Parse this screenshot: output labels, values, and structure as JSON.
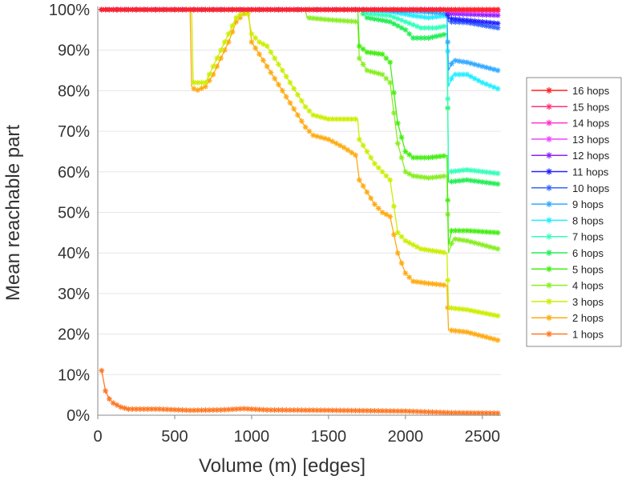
{
  "chart_data": {
    "type": "line",
    "title": "",
    "xlabel": "Volume (m) [edges]",
    "ylabel": "Mean reachable part",
    "xlim": [
      0,
      2600
    ],
    "ylim": [
      0,
      100
    ],
    "xticks": [
      0,
      500,
      1000,
      1500,
      2000,
      2500
    ],
    "xtick_labels": [
      "0",
      "500",
      "1000",
      "1500",
      "2000",
      "2500"
    ],
    "yticks": [
      0,
      10,
      20,
      30,
      40,
      50,
      60,
      70,
      80,
      90,
      100
    ],
    "ytick_labels": [
      "0%",
      "10%",
      "20%",
      "30%",
      "40%",
      "50%",
      "60%",
      "70%",
      "80%",
      "90%",
      "100%"
    ],
    "grid": "horizontal",
    "legend_position": "right",
    "series": [
      {
        "name": "16 hops",
        "color": "#ff2222",
        "points": [
          [
            25,
            100
          ],
          [
            2600,
            100
          ]
        ]
      },
      {
        "name": "15 hops",
        "color": "#ff3377",
        "points": [
          [
            25,
            100
          ],
          [
            2600,
            100
          ]
        ]
      },
      {
        "name": "14 hops",
        "color": "#ff33cc",
        "points": [
          [
            25,
            100
          ],
          [
            2600,
            100
          ]
        ]
      },
      {
        "name": "13 hops",
        "color": "#ee44ff",
        "points": [
          [
            25,
            100
          ],
          [
            2270,
            100
          ],
          [
            2280,
            99.6
          ],
          [
            2600,
            99.5
          ]
        ]
      },
      {
        "name": "12 hops",
        "color": "#8822ff",
        "points": [
          [
            25,
            100
          ],
          [
            2270,
            100
          ],
          [
            2280,
            99
          ],
          [
            2600,
            98.6
          ]
        ]
      },
      {
        "name": "11 hops",
        "color": "#2222ff",
        "points": [
          [
            25,
            100
          ],
          [
            2270,
            100
          ],
          [
            2280,
            97.8
          ],
          [
            2600,
            96.6
          ]
        ]
      },
      {
        "name": "10 hops",
        "color": "#3366ff",
        "points": [
          [
            25,
            100
          ],
          [
            2270,
            100
          ],
          [
            2280,
            97
          ],
          [
            2400,
            96.8
          ],
          [
            2600,
            95.5
          ]
        ]
      },
      {
        "name": "9 hops",
        "color": "#33aaff",
        "points": [
          [
            25,
            100
          ],
          [
            1800,
            100
          ],
          [
            2100,
            99.5
          ],
          [
            2270,
            99
          ],
          [
            2280,
            85
          ],
          [
            2310,
            87.5
          ],
          [
            2400,
            87
          ],
          [
            2600,
            85
          ]
        ]
      },
      {
        "name": "8 hops",
        "color": "#22eeff",
        "points": [
          [
            25,
            100
          ],
          [
            1700,
            100
          ],
          [
            1900,
            99.5
          ],
          [
            2050,
            98.5
          ],
          [
            2150,
            98
          ],
          [
            2270,
            98.5
          ],
          [
            2280,
            81
          ],
          [
            2310,
            84
          ],
          [
            2400,
            84
          ],
          [
            2500,
            82
          ],
          [
            2600,
            80.5
          ]
        ]
      },
      {
        "name": "7 hops",
        "color": "#33ffbb",
        "points": [
          [
            25,
            100
          ],
          [
            1700,
            100
          ],
          [
            1750,
            99
          ],
          [
            1900,
            98.5
          ],
          [
            2000,
            97
          ],
          [
            2100,
            95.5
          ],
          [
            2200,
            95.5
          ],
          [
            2270,
            96
          ],
          [
            2280,
            60
          ],
          [
            2400,
            60.5
          ],
          [
            2600,
            59.6
          ]
        ]
      },
      {
        "name": "6 hops",
        "color": "#22ee55",
        "points": [
          [
            25,
            100
          ],
          [
            1700,
            100
          ],
          [
            1750,
            98
          ],
          [
            1900,
            97
          ],
          [
            2000,
            95
          ],
          [
            2050,
            93
          ],
          [
            2150,
            93
          ],
          [
            2270,
            94
          ],
          [
            2280,
            57.5
          ],
          [
            2400,
            58
          ],
          [
            2600,
            57
          ]
        ]
      },
      {
        "name": "5 hops",
        "color": "#44ee11",
        "points": [
          [
            25,
            100
          ],
          [
            1690,
            100
          ],
          [
            1700,
            91
          ],
          [
            1750,
            89.5
          ],
          [
            1850,
            89
          ],
          [
            1900,
            87
          ],
          [
            1950,
            72
          ],
          [
            2000,
            65
          ],
          [
            2050,
            63.5
          ],
          [
            2150,
            63.5
          ],
          [
            2270,
            64
          ],
          [
            2280,
            42
          ],
          [
            2300,
            45.5
          ],
          [
            2400,
            45.5
          ],
          [
            2600,
            45
          ]
        ]
      },
      {
        "name": "4 hops",
        "color": "#88ee22",
        "points": [
          [
            25,
            100
          ],
          [
            1350,
            100
          ],
          [
            1360,
            98
          ],
          [
            1500,
            97.5
          ],
          [
            1690,
            97
          ],
          [
            1700,
            88
          ],
          [
            1750,
            85
          ],
          [
            1850,
            84
          ],
          [
            1900,
            82
          ],
          [
            1950,
            67
          ],
          [
            2000,
            60
          ],
          [
            2050,
            59
          ],
          [
            2150,
            58.5
          ],
          [
            2270,
            59
          ],
          [
            2280,
            40
          ],
          [
            2310,
            43.5
          ],
          [
            2400,
            43
          ],
          [
            2600,
            41
          ]
        ]
      },
      {
        "name": "3 hops",
        "color": "#ccee00",
        "points": [
          [
            25,
            100
          ],
          [
            610,
            100
          ],
          [
            620,
            82
          ],
          [
            700,
            82
          ],
          [
            750,
            86
          ],
          [
            800,
            90
          ],
          [
            850,
            94
          ],
          [
            900,
            98
          ],
          [
            970,
            100
          ],
          [
            1000,
            94
          ],
          [
            1050,
            92
          ],
          [
            1100,
            91
          ],
          [
            1150,
            88
          ],
          [
            1200,
            85
          ],
          [
            1250,
            82
          ],
          [
            1300,
            79
          ],
          [
            1350,
            76
          ],
          [
            1400,
            74
          ],
          [
            1500,
            73
          ],
          [
            1690,
            73
          ],
          [
            1700,
            68
          ],
          [
            1750,
            65
          ],
          [
            1800,
            62
          ],
          [
            1850,
            60
          ],
          [
            1900,
            58
          ],
          [
            1950,
            45
          ],
          [
            2000,
            43
          ],
          [
            2100,
            41
          ],
          [
            2270,
            40
          ],
          [
            2280,
            26.5
          ],
          [
            2400,
            26
          ],
          [
            2600,
            24.5
          ]
        ]
      },
      {
        "name": "2 hops",
        "color": "#ffaa11",
        "points": [
          [
            25,
            100
          ],
          [
            600,
            100
          ],
          [
            610,
            81
          ],
          [
            640,
            80
          ],
          [
            700,
            81
          ],
          [
            750,
            84
          ],
          [
            800,
            88
          ],
          [
            850,
            92
          ],
          [
            900,
            97
          ],
          [
            950,
            99
          ],
          [
            980,
            99
          ],
          [
            1000,
            92
          ],
          [
            1050,
            89
          ],
          [
            1100,
            86
          ],
          [
            1150,
            83
          ],
          [
            1200,
            80
          ],
          [
            1250,
            77
          ],
          [
            1300,
            74
          ],
          [
            1350,
            71
          ],
          [
            1400,
            69
          ],
          [
            1500,
            68
          ],
          [
            1600,
            66
          ],
          [
            1680,
            64
          ],
          [
            1700,
            58
          ],
          [
            1750,
            55
          ],
          [
            1800,
            52
          ],
          [
            1850,
            50
          ],
          [
            1900,
            49
          ],
          [
            1950,
            40
          ],
          [
            2000,
            35
          ],
          [
            2050,
            33
          ],
          [
            2150,
            32.5
          ],
          [
            2270,
            32
          ],
          [
            2280,
            21
          ],
          [
            2400,
            20.5
          ],
          [
            2500,
            19.5
          ],
          [
            2600,
            18.5
          ]
        ]
      },
      {
        "name": "1 hops",
        "color": "#ff7722",
        "points": [
          [
            25,
            11
          ],
          [
            50,
            6
          ],
          [
            75,
            4
          ],
          [
            100,
            3
          ],
          [
            150,
            2
          ],
          [
            200,
            1.5
          ],
          [
            400,
            1.5
          ],
          [
            600,
            1.2
          ],
          [
            800,
            1.3
          ],
          [
            950,
            1.6
          ],
          [
            1100,
            1.3
          ],
          [
            1500,
            1.2
          ],
          [
            2000,
            1
          ],
          [
            2300,
            0.6
          ],
          [
            2600,
            0.5
          ]
        ]
      }
    ]
  }
}
